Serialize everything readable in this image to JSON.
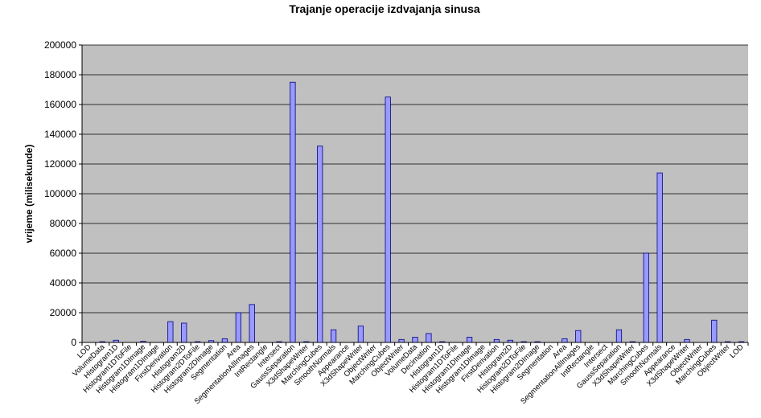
{
  "chart_data": {
    "type": "bar",
    "title": "Trajanje operacije izdvajanja sinusa",
    "xlabel": "",
    "ylabel": "vrijeme (milisekunde)",
    "ylim": [
      0,
      200000
    ],
    "yticks": [
      "0",
      "20000",
      "40000",
      "60000",
      "80000",
      "100000",
      "120000",
      "140000",
      "160000",
      "180000",
      "200000"
    ],
    "grid": true,
    "legend": "none",
    "colors": {
      "bar_fill": "#9999ff",
      "bar_stroke": "#000080",
      "plot_bg": "#c0c0c0",
      "axis": "#000000"
    },
    "categories": [
      "LOD",
      "VolumeData",
      "Histogram1D",
      "Histogram1DToFile",
      "Histogram1DImage",
      "Histogram1DImage",
      "FirstDerivation",
      "Histogram2D",
      "Histogram2DToFile",
      "Histogram2DImage",
      "Segmentation",
      "Area",
      "SegmentationAllImages",
      "IntRectangle",
      "Intersect",
      "GaussSeparation",
      "X3dShapeWriter",
      "MarchingCubes",
      "SmoothNormals",
      "Appearance",
      "X3dShapeWriter",
      "ObjectWriter",
      "MarchingCubes",
      "ObjectWriter",
      "VolumeData",
      "Decimation",
      "Histogram1D",
      "Histogram1DToFile",
      "Histogram1DImage",
      "Histogram1DImage",
      "FirstDerivation",
      "Histogram2D",
      "Histogram2DToFile",
      "Histogram2DImage",
      "Segmentation",
      "Area",
      "SegmentationAllImages",
      "IntRectangle",
      "Intersect",
      "GaussSeparation",
      "X3dShapeWriter",
      "MarchingCubes",
      "SmoothNormals",
      "Appearance",
      "X3dShapeWriter",
      "ObjectWriter",
      "MarchingCubes",
      "ObjectWriter",
      "LOD"
    ],
    "values": [
      0,
      500,
      1500,
      0,
      800,
      0,
      14000,
      13000,
      500,
      1200,
      2500,
      20000,
      25500,
      0,
      500,
      175000,
      500,
      132000,
      8500,
      0,
      11000,
      0,
      165000,
      2000,
      3500,
      6000,
      500,
      0,
      3500,
      0,
      2000,
      1500,
      500,
      500,
      0,
      2500,
      8000,
      0,
      0,
      8500,
      500,
      60000,
      114000,
      0,
      2000,
      0,
      15000,
      500,
      500
    ]
  }
}
